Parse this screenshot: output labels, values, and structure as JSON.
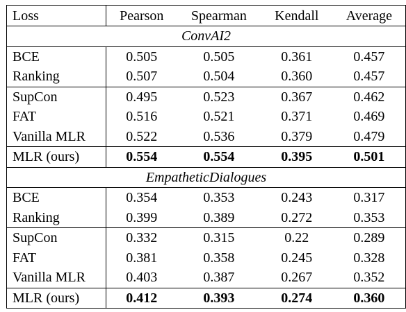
{
  "table": {
    "columns": [
      "Loss",
      "Pearson",
      "Spearman",
      "Kendall",
      "Average"
    ],
    "sections": [
      {
        "title": "ConvAI2",
        "groups": [
          [
            {
              "loss": "BCE",
              "values": [
                "0.505",
                "0.505",
                "0.361",
                "0.457"
              ]
            },
            {
              "loss": "Ranking",
              "values": [
                "0.507",
                "0.504",
                "0.360",
                "0.457"
              ]
            }
          ],
          [
            {
              "loss": "SupCon",
              "values": [
                "0.495",
                "0.523",
                "0.367",
                "0.462"
              ]
            },
            {
              "loss": "FAT",
              "values": [
                "0.516",
                "0.521",
                "0.371",
                "0.469"
              ]
            },
            {
              "loss": "Vanilla MLR",
              "values": [
                "0.522",
                "0.536",
                "0.379",
                "0.479"
              ]
            }
          ]
        ],
        "ours": {
          "loss": "MLR (ours)",
          "values": [
            "0.554",
            "0.554",
            "0.395",
            "0.501"
          ]
        }
      },
      {
        "title": "EmpatheticDialogues",
        "groups": [
          [
            {
              "loss": "BCE",
              "values": [
                "0.354",
                "0.353",
                "0.243",
                "0.317"
              ]
            },
            {
              "loss": "Ranking",
              "values": [
                "0.399",
                "0.389",
                "0.272",
                "0.353"
              ]
            }
          ],
          [
            {
              "loss": "SupCon",
              "values": [
                "0.332",
                "0.315",
                "0.22",
                "0.289"
              ]
            },
            {
              "loss": "FAT",
              "values": [
                "0.381",
                "0.358",
                "0.245",
                "0.328"
              ]
            },
            {
              "loss": "Vanilla MLR",
              "values": [
                "0.403",
                "0.387",
                "0.267",
                "0.352"
              ]
            }
          ]
        ],
        "ours": {
          "loss": "MLR (ours)",
          "values": [
            "0.412",
            "0.393",
            "0.274",
            "0.360"
          ]
        }
      }
    ]
  }
}
